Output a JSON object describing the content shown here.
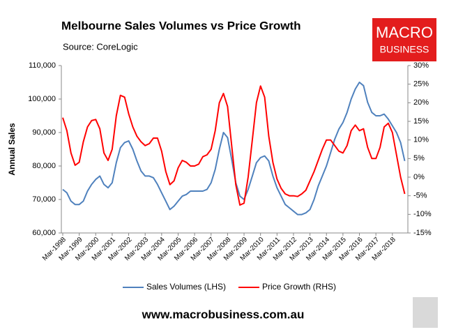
{
  "chart_data": {
    "type": "line",
    "title": "Melbourne Sales Volumes vs Price Growth",
    "subtitle": "Source: CoreLogic",
    "ylabel": "Annual Sales",
    "logo": [
      "MACRO",
      "BUSINESS"
    ],
    "footer": "www.macrobusiness.com.au",
    "categories": [
      "Mar-1998",
      null,
      null,
      null,
      "Mar-1999",
      null,
      null,
      null,
      "Mar-2000",
      null,
      null,
      null,
      "Mar-2001",
      null,
      null,
      null,
      "Mar-2002",
      null,
      null,
      null,
      "Mar-2003",
      null,
      null,
      null,
      "Mar-2004",
      null,
      null,
      null,
      "Mar-2005",
      null,
      null,
      null,
      "Mar-2006",
      null,
      null,
      null,
      "Mar-2007",
      null,
      null,
      null,
      "Mar-2008",
      null,
      null,
      null,
      "Mar-2009",
      null,
      null,
      null,
      "Mar-2010",
      null,
      null,
      null,
      "Mar-2011",
      null,
      null,
      null,
      "Mar-2012",
      null,
      null,
      null,
      "Mar-2013",
      null,
      null,
      null,
      "Mar-2014",
      null,
      null,
      null,
      "Mar-2015",
      null,
      null,
      null,
      "Mar-2016",
      null,
      null,
      null,
      "Mar-2017",
      null,
      null,
      null,
      "Mar-2018",
      null,
      null,
      null
    ],
    "series": [
      {
        "name": "Sales Volumes (LHS)",
        "color": "#4f81bd",
        "axis": "y",
        "values": [
          73000,
          72000,
          69500,
          68500,
          68500,
          69500,
          72500,
          74500,
          76000,
          77000,
          74500,
          73500,
          75000,
          81000,
          85500,
          87000,
          87500,
          85000,
          81500,
          78500,
          77000,
          77000,
          76500,
          74500,
          72000,
          69500,
          67000,
          68000,
          69500,
          71000,
          71500,
          72500,
          72500,
          72500,
          72500,
          73000,
          75000,
          79000,
          85000,
          90000,
          88500,
          82000,
          75000,
          71000,
          70000,
          73000,
          77000,
          81000,
          82500,
          83000,
          81500,
          77000,
          73500,
          71000,
          68500,
          67500,
          66500,
          65500,
          65500,
          66000,
          67000,
          70000,
          74000,
          77000,
          80000,
          84000,
          88000,
          91000,
          93000,
          96000,
          100000,
          103000,
          105000,
          104000,
          99000,
          96000,
          95000,
          95000,
          95500,
          94000,
          92000,
          90000,
          87000,
          81500
        ]
      },
      {
        "name": "Price Growth (RHS)",
        "color": "#ff0000",
        "axis": "y2",
        "values": [
          16,
          12.5,
          6.5,
          3.2,
          4,
          9.5,
          13.5,
          15.2,
          15.5,
          13,
          6.5,
          4.5,
          7.5,
          16.5,
          22,
          21.5,
          17,
          13.5,
          11,
          9.5,
          8.5,
          9,
          10.5,
          10.5,
          7,
          1.5,
          -2,
          -1,
          2.5,
          4.5,
          4,
          3,
          3,
          3.5,
          5.5,
          6,
          7.5,
          12.5,
          20,
          22.5,
          19,
          8.5,
          -2,
          -7.5,
          -7,
          0,
          10,
          20,
          24.5,
          21.5,
          11,
          4,
          -0.5,
          -3,
          -4.5,
          -5,
          -5,
          -5.2,
          -4.5,
          -3.5,
          -1,
          1.5,
          4.5,
          7.5,
          10,
          10,
          8.5,
          7,
          6.5,
          8.5,
          12.5,
          14,
          12.5,
          13,
          8,
          5,
          5,
          8,
          13.5,
          14.5,
          12,
          6,
          0,
          -4.5
        ]
      }
    ],
    "ylim": [
      60000,
      110000
    ],
    "yticks": [
      {
        "value": 60000,
        "label": "60,000"
      },
      {
        "value": 70000,
        "label": "70,000"
      },
      {
        "value": 80000,
        "label": "80,000"
      },
      {
        "value": 90000,
        "label": "90,000"
      },
      {
        "value": 100000,
        "label": "100,000"
      },
      {
        "value": 110000,
        "label": "110,000"
      }
    ],
    "y2lim": [
      -15,
      30
    ],
    "y2ticks": [
      {
        "value": -15,
        "label": "-15%"
      },
      {
        "value": -10,
        "label": "-10%"
      },
      {
        "value": -5,
        "label": "-5%"
      },
      {
        "value": 0,
        "label": "0%"
      },
      {
        "value": 5,
        "label": "5%"
      },
      {
        "value": 10,
        "label": "10%"
      },
      {
        "value": 15,
        "label": "15%"
      },
      {
        "value": 20,
        "label": "20%"
      },
      {
        "value": 25,
        "label": "25%"
      },
      {
        "value": 30,
        "label": "30%"
      }
    ],
    "grid": false,
    "legend": "bottom"
  }
}
